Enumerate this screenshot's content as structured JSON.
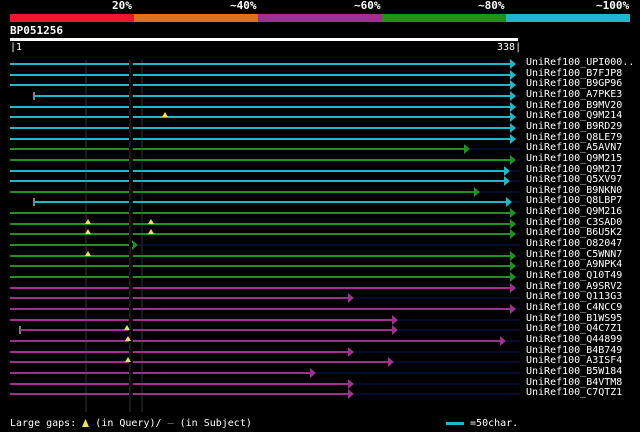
{
  "legend": {
    "bands": [
      {
        "label": "20%",
        "color": "#e8192c"
      },
      {
        "label": "~40%",
        "color": "#e07020"
      },
      {
        "label": "~60%",
        "color": "#a03090"
      },
      {
        "label": "~80%",
        "color": "#209020"
      },
      {
        "label": "~100%",
        "color": "#20b8c8"
      }
    ]
  },
  "query": {
    "id": "BP051256",
    "start": "1",
    "end": "338"
  },
  "colors": {
    "line_gap": "#0a1a5a",
    "marker": "#f0e060"
  },
  "hits": [
    {
      "label": "UniRef100_UPI000..",
      "color": "#20b8c8"
    },
    {
      "label": "UniRef100_B7FJP8",
      "color": "#20b8c8"
    },
    {
      "label": "UniRef100_B9GP96",
      "color": "#20b8c8"
    },
    {
      "label": "UniRef100_A7PKE3",
      "color": "#20b8c8"
    },
    {
      "label": "UniRef100_B9MV20",
      "color": "#20b8c8"
    },
    {
      "label": "UniRef100_Q9M214",
      "color": "#20b8c8"
    },
    {
      "label": "UniRef100_B9RD29",
      "color": "#20b8c8"
    },
    {
      "label": "UniRef100_Q8LE79",
      "color": "#20b8c8"
    },
    {
      "label": "UniRef100_A5AVN7",
      "color": "#209020"
    },
    {
      "label": "UniRef100_Q9M215",
      "color": "#209020"
    },
    {
      "label": "UniRef100_Q9M217",
      "color": "#20b8c8"
    },
    {
      "label": "UniRef100_Q5XV97",
      "color": "#20b8c8"
    },
    {
      "label": "UniRef100_B9NKN0",
      "color": "#209020"
    },
    {
      "label": "UniRef100_Q8LBP7",
      "color": "#20b8c8"
    },
    {
      "label": "UniRef100_Q9M216",
      "color": "#209020"
    },
    {
      "label": "UniRef100_C3SAD0",
      "color": "#209020"
    },
    {
      "label": "UniRef100_B6U5K2",
      "color": "#209020"
    },
    {
      "label": "UniRef100_O82047",
      "color": "#209020"
    },
    {
      "label": "UniRef100_C5WNN7",
      "color": "#209020"
    },
    {
      "label": "UniRef100_A9NPK4",
      "color": "#209020"
    },
    {
      "label": "UniRef100_Q10T49",
      "color": "#209020"
    },
    {
      "label": "UniRef100_A9SRV2",
      "color": "#a03090"
    },
    {
      "label": "UniRef100_Q113G3",
      "color": "#a03090"
    },
    {
      "label": "UniRef100_C4NCC9",
      "color": "#a03090"
    },
    {
      "label": "UniRef100_B1WS95",
      "color": "#a03090"
    },
    {
      "label": "UniRef100_Q4C7Z1",
      "color": "#a03090"
    },
    {
      "label": "UniRef100_Q44899",
      "color": "#a03090"
    },
    {
      "label": "UniRef100_B4B749",
      "color": "#a03090"
    },
    {
      "label": "UniRef100_A3ISF4",
      "color": "#a03090"
    },
    {
      "label": "UniRef100_B5W184",
      "color": "#a03090"
    },
    {
      "label": "UniRef100_B4VTM8",
      "color": "#a03090"
    },
    {
      "label": "UniRef100_C7QTZ1",
      "color": "#a03090"
    }
  ],
  "footer": {
    "gaps_label": "Large gaps:",
    "in_query": "(in Query)/",
    "dash": "—",
    "in_subject": "(in Subject)",
    "scale_label": "=50char."
  }
}
